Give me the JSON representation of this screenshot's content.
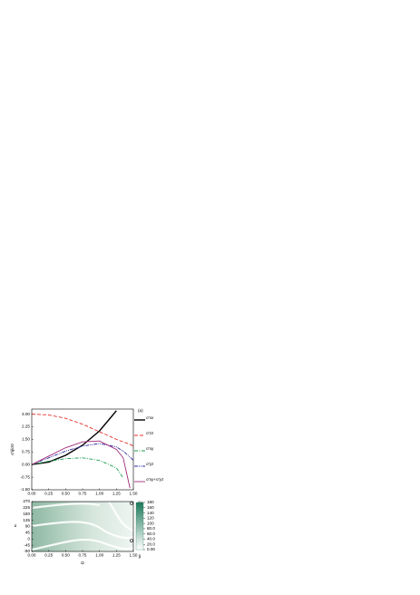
{
  "chart_data": [
    {
      "type": "line",
      "panel_label": "(a)",
      "y_label": "σ′ij/σ0",
      "x": [
        0,
        0.25,
        0.5,
        0.75,
        1.0,
        1.25,
        1.35,
        1.45,
        1.5
      ],
      "series": [
        {
          "name": "σ′xx",
          "color": "#000000",
          "dash": "",
          "width": 1.4,
          "values": [
            0,
            0.15,
            0.55,
            1.15,
            2.0,
            3.2,
            null,
            null,
            null
          ]
        },
        {
          "name": "σ′zz",
          "color": "#e8302a",
          "dash": "4 2",
          "width": 0.9,
          "values": [
            3.0,
            2.95,
            2.75,
            2.4,
            1.95,
            1.5,
            1.35,
            1.2,
            1.1
          ]
        },
        {
          "name": "σ′xy",
          "color": "#1aa050",
          "dash": "4 1.5 1 1.5",
          "width": 0.9,
          "values": [
            0,
            0.2,
            0.35,
            0.4,
            0.25,
            -0.2,
            -0.8,
            null,
            null
          ]
        },
        {
          "name": "σ′yz",
          "color": "#2a2a9a",
          "dash": "4 1 1 1 1 1",
          "width": 0.9,
          "values": [
            0,
            0.4,
            0.8,
            1.1,
            1.25,
            1.05,
            0.8,
            0.45,
            0.25
          ]
        },
        {
          "name": "σ′xy+σ′yz",
          "color": "#a02a7a",
          "dash": "",
          "width": 0.9,
          "values": [
            0,
            0.5,
            1.0,
            1.35,
            1.4,
            0.9,
            0.4,
            -1.4,
            null
          ]
        }
      ],
      "xlim": [
        0,
        1.5
      ],
      "ylim": [
        -1.5,
        3.3
      ],
      "xticks": [
        {
          "value": 0,
          "label": "0.00"
        },
        {
          "value": 0.25,
          "label": "0.25"
        },
        {
          "value": 0.5,
          "label": "0.50"
        },
        {
          "value": 0.75,
          "label": "0.75"
        },
        {
          "value": 1,
          "label": "1.00"
        },
        {
          "value": 1.25,
          "label": "1.25"
        },
        {
          "value": 1.5,
          "label": "1.50"
        }
      ],
      "yticks": [
        {
          "value": 3,
          "label": "3.00"
        },
        {
          "value": 2.25,
          "label": "2.25"
        },
        {
          "value": 1.5,
          "label": "1.50"
        },
        {
          "value": 0.75,
          "label": "0.75"
        },
        {
          "value": 0,
          "label": "0.00"
        },
        {
          "value": -0.75,
          "label": "-0.75"
        },
        {
          "value": -1.5,
          "label": "-1.50"
        }
      ]
    },
    {
      "type": "heatmap",
      "panel_label": "(b)",
      "x_label": "Ω",
      "y_label": "α",
      "colorbar_label": "β",
      "xlim": [
        0,
        1.5
      ],
      "ylim": [
        -90,
        270
      ],
      "xticks": [
        {
          "value": 0,
          "label": "0.00"
        },
        {
          "value": 0.25,
          "label": "0.25"
        },
        {
          "value": 0.5,
          "label": "0.50"
        },
        {
          "value": 0.75,
          "label": "0.75"
        },
        {
          "value": 1,
          "label": "1.00"
        },
        {
          "value": 1.25,
          "label": "1.25"
        },
        {
          "value": 1.5,
          "label": "1.50"
        }
      ],
      "yticks": [
        270,
        225,
        180,
        135,
        90,
        45,
        0,
        -45,
        -90
      ],
      "clim": [
        0,
        180
      ],
      "cticks": [
        180,
        160,
        140,
        120,
        100,
        {
          "value": 80,
          "label": "80.0"
        },
        {
          "value": 60,
          "label": "60.0"
        },
        {
          "value": 40,
          "label": "40.0"
        },
        {
          "value": 20,
          "label": "20.0"
        },
        {
          "value": 0,
          "label": "0.00"
        }
      ],
      "color": "#1e7a5a"
    }
  ]
}
